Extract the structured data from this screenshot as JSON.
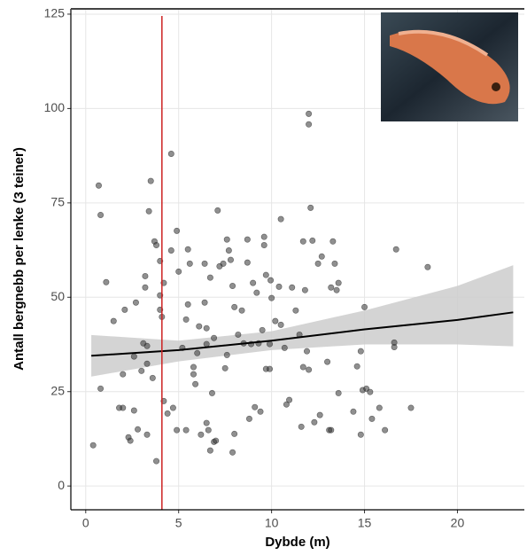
{
  "chart_data": {
    "type": "scatter",
    "x_label": "Dybde (m)",
    "y_label": "Antall bergnebb per lenke (3 teiner)",
    "xlim": [
      -0.8,
      23.6
    ],
    "ylim": [
      -6.3,
      126.4
    ],
    "xticks": [
      0,
      5,
      10,
      15,
      20
    ],
    "yticks": [
      0,
      25,
      50,
      75,
      100,
      125
    ],
    "grid": true,
    "points": {
      "color": "#333333",
      "x": [
        0.4,
        0.7,
        0.8,
        0.8,
        1.1,
        1.5,
        1.8,
        2.0,
        2.0,
        2.1,
        2.3,
        2.4,
        2.6,
        2.6,
        2.7,
        2.8,
        3.0,
        3.1,
        3.2,
        3.2,
        3.3,
        3.3,
        3.3,
        3.4,
        3.5,
        3.6,
        3.7,
        3.8,
        3.8,
        4.0,
        4.0,
        4.0,
        4.1,
        4.2,
        4.2,
        4.4,
        4.6,
        4.6,
        4.7,
        4.9,
        4.9,
        5.0,
        5.2,
        5.4,
        5.4,
        5.5,
        5.5,
        5.6,
        5.8,
        5.8,
        5.9,
        6.0,
        6.1,
        6.2,
        6.4,
        6.4,
        6.5,
        6.5,
        6.5,
        6.6,
        6.7,
        6.7,
        6.8,
        6.9,
        6.9,
        7.0,
        7.1,
        7.2,
        7.4,
        7.5,
        7.6,
        7.6,
        7.7,
        7.8,
        7.9,
        7.9,
        8.0,
        8.0,
        8.2,
        8.4,
        8.5,
        8.7,
        8.7,
        8.8,
        8.9,
        9.0,
        9.1,
        9.2,
        9.3,
        9.4,
        9.5,
        9.6,
        9.6,
        9.7,
        9.7,
        9.9,
        9.9,
        9.95,
        10.0,
        10.2,
        10.4,
        10.5,
        10.5,
        10.7,
        10.8,
        10.95,
        11.1,
        11.3,
        11.5,
        11.6,
        11.7,
        11.7,
        11.8,
        11.9,
        12.0,
        12.0,
        12.0,
        12.1,
        12.2,
        12.3,
        12.5,
        12.6,
        12.7,
        13.0,
        13.1,
        13.2,
        13.2,
        13.3,
        13.4,
        13.5,
        13.6,
        13.6,
        14.4,
        14.6,
        14.8,
        14.8,
        14.9,
        15.0,
        15.1,
        15.3,
        15.4,
        15.8,
        16.1,
        16.6,
        16.6,
        16.7,
        17.5,
        18.4
      ],
      "y": [
        10.8,
        79.6,
        71.8,
        25.8,
        54.0,
        43.7,
        20.7,
        20.7,
        29.6,
        46.7,
        12.9,
        12.0,
        34.3,
        20.0,
        48.6,
        15.0,
        30.5,
        37.8,
        55.6,
        52.6,
        37.1,
        32.4,
        13.6,
        72.8,
        80.8,
        28.6,
        64.8,
        63.8,
        6.6,
        46.7,
        59.6,
        50.5,
        44.8,
        53.8,
        22.5,
        19.2,
        88.0,
        62.4,
        20.7,
        67.6,
        14.8,
        56.8,
        36.6,
        44.1,
        14.8,
        62.7,
        48.1,
        58.9,
        31.5,
        29.6,
        27.0,
        35.2,
        42.3,
        13.6,
        58.9,
        48.6,
        41.8,
        37.6,
        16.7,
        14.8,
        55.2,
        9.4,
        24.6,
        39.2,
        11.7,
        12.0,
        73.0,
        58.2,
        58.9,
        31.2,
        34.7,
        65.3,
        62.4,
        59.9,
        8.9,
        53.0,
        13.8,
        47.4,
        40.1,
        46.5,
        37.8,
        65.3,
        59.2,
        17.8,
        37.6,
        53.8,
        20.9,
        51.2,
        37.8,
        19.7,
        41.3,
        63.8,
        66.0,
        31.0,
        55.9,
        37.6,
        31.0,
        54.5,
        49.8,
        43.7,
        52.8,
        70.7,
        42.7,
        36.6,
        21.6,
        22.8,
        52.6,
        46.5,
        40.1,
        15.7,
        64.8,
        31.5,
        51.9,
        35.7,
        98.6,
        30.8,
        95.8,
        73.7,
        65.0,
        16.9,
        58.9,
        18.8,
        60.8,
        32.9,
        14.8,
        52.6,
        14.8,
        64.8,
        58.9,
        51.9,
        53.8,
        24.6,
        19.7,
        31.7,
        35.7,
        13.6,
        25.4,
        47.4,
        25.8,
        24.9,
        17.8,
        20.7,
        14.8,
        36.8,
        38.0,
        62.7,
        20.7,
        58.0
      ]
    },
    "trend": {
      "color": "#000000",
      "band_color": "#cccccc",
      "x": [
        0.3,
        5,
        10,
        15,
        20,
        23
      ],
      "y": [
        34.5,
        36.0,
        38.5,
        41.5,
        44.0,
        46.0
      ],
      "lower": [
        29.0,
        33.0,
        36.0,
        37.5,
        37.5,
        37.0
      ],
      "upper": [
        40.0,
        38.5,
        41.0,
        46.5,
        53.0,
        58.5
      ]
    },
    "vline": {
      "x": 4.1,
      "color": "#cc2222"
    }
  }
}
